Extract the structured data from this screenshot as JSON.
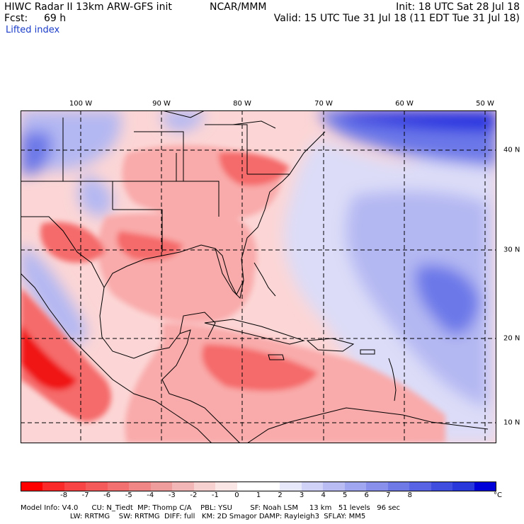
{
  "header": {
    "title_left": "HIWC Radar II 13km ARW-GFS init",
    "org": "NCAR/MMM",
    "init": "Init: 18 UTC Sat 28 Jul 18",
    "fcst_label": "Fcst:",
    "fcst_value": "69 h",
    "valid": "Valid: 15 UTC Tue 31 Jul 18 (11 EDT Tue 31 Jul 18)",
    "field_name": "Lifted index"
  },
  "map": {
    "longitude_labels": [
      "100 W",
      "90 W",
      "80 W",
      "70 W",
      "60 W",
      "50 W"
    ],
    "latitude_labels": [
      "40 N",
      "30 N",
      "20 N",
      "10 N"
    ],
    "colors": {
      "deep_red": "#f01818",
      "red": "#f56a6a",
      "light_red": "#f9aaaa",
      "pale_red": "#fcd6d6",
      "white": "#ffffff",
      "pale_blue": "#dcdcf8",
      "light_blue": "#b4b8f2",
      "blue": "#6c78e8",
      "deep_blue": "#1c2ce0",
      "coast": "#000000",
      "grid": "#000000"
    }
  },
  "colorbar": {
    "colors": [
      "#ff0000",
      "#fb2a2a",
      "#f84444",
      "#f55a5a",
      "#f27070",
      "#f08686",
      "#ee9c9c",
      "#f2b6b6",
      "#f7d0d0",
      "#fbe6e6",
      "#ffffff",
      "#ffffff",
      "#e8e8fb",
      "#d0d2f7",
      "#b8bcf3",
      "#a0a6ef",
      "#8890eb",
      "#707ae7",
      "#5864e3",
      "#404edf",
      "#2838db",
      "#0000d8"
    ],
    "ticks": [
      "-8",
      "-7",
      "-6",
      "-5",
      "-4",
      "-3",
      "-2",
      "-1",
      "0",
      "1",
      "2",
      "3",
      "4",
      "5",
      "6",
      "7",
      "8"
    ],
    "unit": "°C"
  },
  "footer": {
    "line1": "Model Info: V4.0      CU: N_Tiedt  MP: Thomp C/A    PBL: YSU        SF: Noah LSM     13 km   51 levels   96 sec",
    "line2": "                      LW: RRTMG    SW: RRTMG  DIFF: full   KM: 2D Smagor DAMP: Rayleigh3  SFLAY: MM5"
  }
}
